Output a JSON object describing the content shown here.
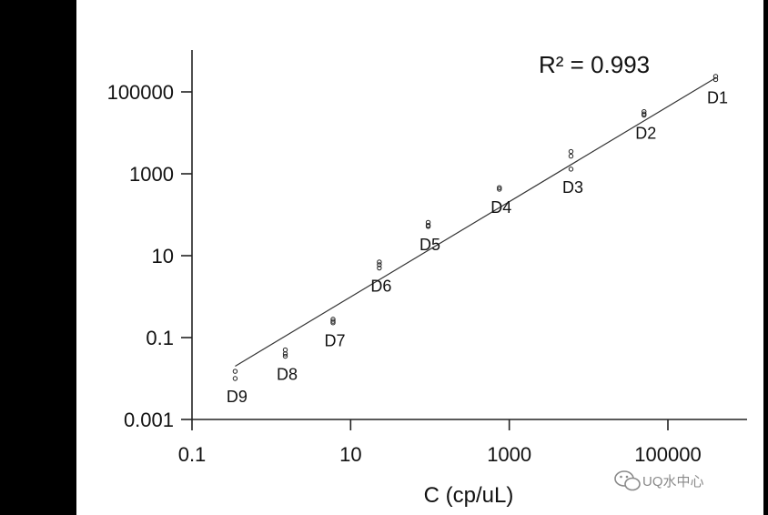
{
  "chart_data": {
    "type": "scatter",
    "title": "",
    "xlabel": "C (cp/uL)",
    "ylabel": "",
    "x_scale": "log",
    "y_scale": "log",
    "xlim": [
      0.1,
      1000000
    ],
    "ylim": [
      0.001,
      1000000
    ],
    "x_tick_labels": [
      "0.1",
      "10",
      "1000",
      "100000"
    ],
    "x_tick_values": [
      0.1,
      10,
      1000,
      100000
    ],
    "y_tick_labels": [
      "0.001",
      "0.1",
      "10",
      "1000",
      "100000"
    ],
    "y_tick_values": [
      0.001,
      0.1,
      10,
      1000,
      100000
    ],
    "annotation": "R² = 0.993",
    "grid": false,
    "legend": "none",
    "colors": {
      "axis": "#222222",
      "fit": "#333333",
      "points": "#222222"
    },
    "fit_line": {
      "x": [
        0.35,
        400000
      ],
      "y": [
        0.02,
        220000
      ]
    },
    "points": [
      {
        "label": "D1",
        "x": 400000,
        "y": [
          240000,
          200000
        ]
      },
      {
        "label": "D2",
        "x": 50000,
        "y": [
          33000,
          29000,
          27000
        ]
      },
      {
        "label": "D3",
        "x": 6000,
        "y": [
          3500,
          2700,
          1300
        ]
      },
      {
        "label": "D4",
        "x": 750,
        "y": [
          460,
          420
        ]
      },
      {
        "label": "D5",
        "x": 95,
        "y": [
          65,
          55,
          52
        ]
      },
      {
        "label": "D6",
        "x": 23,
        "y": [
          7,
          6,
          5
        ]
      },
      {
        "label": "D7",
        "x": 6,
        "y": [
          0.28,
          0.25,
          0.23
        ]
      },
      {
        "label": "D8",
        "x": 1.5,
        "y": [
          0.05,
          0.04,
          0.035
        ]
      },
      {
        "label": "D9",
        "x": 0.35,
        "y": [
          0.015,
          0.01
        ]
      }
    ]
  },
  "watermark": {
    "text": "UQ水中心",
    "icon": "wechat-icon"
  }
}
